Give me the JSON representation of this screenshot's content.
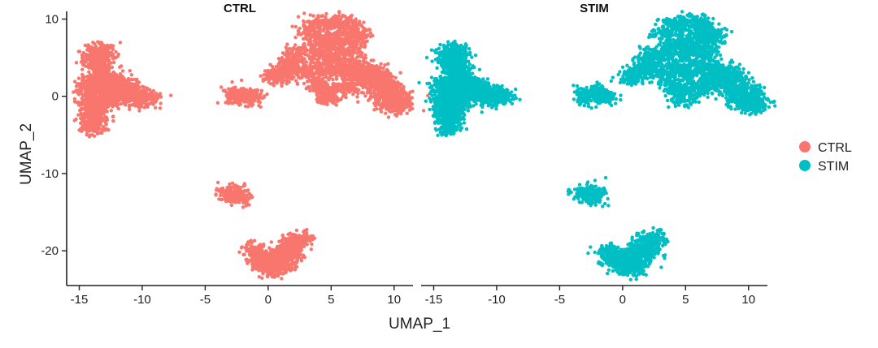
{
  "chart_data": {
    "type": "scatter",
    "xlabel": "UMAP_1",
    "ylabel": "UMAP_2",
    "xlim": [
      -16,
      11.5
    ],
    "ylim": [
      -24.5,
      11
    ],
    "x_ticks": [
      -15,
      -10,
      -5,
      0,
      5,
      10
    ],
    "x_tick_labels": [
      "-15",
      "-10",
      "-5",
      "0",
      "5",
      "10"
    ],
    "y_ticks": [
      10,
      0,
      -10,
      -20
    ],
    "y_tick_labels": [
      "10",
      "0",
      "-10",
      "-20"
    ],
    "grid": false,
    "legend": "right",
    "facets": [
      {
        "title": "CTRL",
        "color": "#F8766D",
        "clusters": [
          {
            "points": [
              [
                -13.6,
                5.5
              ],
              [
                -13.2,
                4.5
              ],
              [
                -13.5,
                3.6
              ],
              [
                -12.8,
                2.8
              ],
              [
                -13.9,
                4.8
              ],
              [
                -13.1,
                5.9
              ]
            ]
          },
          {
            "points": [
              [
                -14.2,
                1.8
              ],
              [
                -13.5,
                1.2
              ],
              [
                -12.6,
                1.0
              ],
              [
                -11.8,
                0.7
              ],
              [
                -11.0,
                0.6
              ],
              [
                -10.3,
                0.2
              ],
              [
                -9.6,
                -0.2
              ],
              [
                -13.8,
                0.2
              ],
              [
                -12.9,
                -0.4
              ],
              [
                -14.3,
                0.6
              ],
              [
                -12.2,
                -0.2
              ],
              [
                -11.4,
                1.4
              ],
              [
                -10.6,
                -0.4
              ],
              [
                -13.1,
                2.4
              ],
              [
                -12.3,
                1.9
              ]
            ]
          },
          {
            "points": [
              [
                -13.9,
                -0.8
              ],
              [
                -13.8,
                -1.6
              ],
              [
                -13.9,
                -2.5
              ],
              [
                -13.7,
                -3.2
              ],
              [
                -13.8,
                -4.1
              ],
              [
                -13.6,
                -1.2
              ],
              [
                -14.0,
                -2.0
              ]
            ]
          },
          {
            "points": [
              [
                -2.8,
                0.2
              ],
              [
                -2.3,
                0.1
              ],
              [
                -1.8,
                0.0
              ],
              [
                -1.4,
                -0.1
              ]
            ]
          },
          {
            "points": [
              [
                0.6,
                2.6
              ],
              [
                1.2,
                2.9
              ],
              [
                1.7,
                3.6
              ],
              [
                2.1,
                4.6
              ],
              [
                2.3,
                5.4
              ],
              [
                2.8,
                3.2
              ]
            ]
          },
          {
            "points": [
              [
                3.2,
                8.2
              ],
              [
                4.0,
                9.2
              ],
              [
                5.0,
                9.6
              ],
              [
                6.0,
                9.4
              ],
              [
                6.8,
                8.6
              ],
              [
                7.3,
                7.6
              ],
              [
                4.2,
                7.0
              ],
              [
                5.4,
                7.4
              ],
              [
                6.4,
                7.2
              ],
              [
                3.6,
                5.8
              ],
              [
                4.6,
                5.2
              ],
              [
                5.6,
                5.6
              ],
              [
                6.6,
                5.4
              ],
              [
                4.2,
                3.6
              ],
              [
                5.2,
                3.2
              ],
              [
                6.2,
                3.6
              ],
              [
                3.8,
                1.8
              ],
              [
                4.6,
                0.6
              ],
              [
                5.4,
                1.0
              ],
              [
                4.8,
                -0.3
              ]
            ]
          },
          {
            "points": [
              [
                6.8,
                3.6
              ],
              [
                7.6,
                3.0
              ],
              [
                8.4,
                2.6
              ],
              [
                9.2,
                2.2
              ],
              [
                9.6,
                1.0
              ],
              [
                9.0,
                0.2
              ],
              [
                8.4,
                1.4
              ],
              [
                7.2,
                2.0
              ],
              [
                10.2,
                0.2
              ],
              [
                10.6,
                -0.6
              ],
              [
                10.2,
                -1.4
              ],
              [
                9.4,
                -0.8
              ],
              [
                8.2,
                3.4
              ],
              [
                6.6,
                1.2
              ]
            ]
          },
          {
            "points": [
              [
                -3.0,
                -12.4
              ],
              [
                -2.6,
                -12.8
              ],
              [
                -2.4,
                -12.9
              ]
            ]
          },
          {
            "points": [
              [
                -1.2,
                -20.1
              ],
              [
                -0.4,
                -20.6
              ],
              [
                0.2,
                -21.0
              ],
              [
                0.8,
                -20.6
              ],
              [
                1.4,
                -19.8
              ],
              [
                2.0,
                -18.6
              ],
              [
                2.5,
                -18.4
              ],
              [
                0.0,
                -22.0
              ],
              [
                0.8,
                -22.4
              ],
              [
                1.4,
                -21.4
              ],
              [
                -0.6,
                -21.4
              ],
              [
                1.8,
                -20.4
              ]
            ]
          }
        ]
      },
      {
        "title": "STIM",
        "color": "#00BFC4",
        "clusters": [
          {
            "points": [
              [
                -13.6,
                5.5
              ],
              [
                -13.2,
                4.5
              ],
              [
                -13.5,
                3.6
              ],
              [
                -12.8,
                2.8
              ],
              [
                -13.9,
                4.8
              ],
              [
                -13.1,
                5.9
              ]
            ]
          },
          {
            "points": [
              [
                -14.2,
                1.8
              ],
              [
                -13.5,
                1.2
              ],
              [
                -12.6,
                1.0
              ],
              [
                -11.8,
                0.7
              ],
              [
                -11.0,
                0.6
              ],
              [
                -10.3,
                0.2
              ],
              [
                -9.6,
                -0.2
              ],
              [
                -13.8,
                0.2
              ],
              [
                -12.9,
                -0.4
              ],
              [
                -14.3,
                0.6
              ],
              [
                -12.2,
                -0.2
              ],
              [
                -11.4,
                1.4
              ],
              [
                -10.6,
                -0.4
              ],
              [
                -13.1,
                2.4
              ],
              [
                -12.3,
                1.9
              ]
            ]
          },
          {
            "points": [
              [
                -13.9,
                -0.8
              ],
              [
                -13.8,
                -1.6
              ],
              [
                -13.9,
                -2.5
              ],
              [
                -13.7,
                -3.2
              ],
              [
                -13.8,
                -4.1
              ],
              [
                -13.6,
                -1.2
              ],
              [
                -14.0,
                -2.0
              ]
            ]
          },
          {
            "points": [
              [
                -2.8,
                0.2
              ],
              [
                -2.3,
                0.1
              ],
              [
                -1.8,
                0.0
              ],
              [
                -1.4,
                -0.1
              ]
            ]
          },
          {
            "points": [
              [
                0.6,
                2.6
              ],
              [
                1.2,
                2.9
              ],
              [
                1.7,
                3.6
              ],
              [
                2.1,
                4.6
              ],
              [
                2.3,
                5.4
              ],
              [
                2.8,
                3.2
              ]
            ]
          },
          {
            "points": [
              [
                3.2,
                8.2
              ],
              [
                4.0,
                9.2
              ],
              [
                5.0,
                9.6
              ],
              [
                6.0,
                9.4
              ],
              [
                6.8,
                8.6
              ],
              [
                7.3,
                7.6
              ],
              [
                4.2,
                7.0
              ],
              [
                5.4,
                7.4
              ],
              [
                6.4,
                7.2
              ],
              [
                3.6,
                5.8
              ],
              [
                4.6,
                5.2
              ],
              [
                5.6,
                5.6
              ],
              [
                6.6,
                5.4
              ],
              [
                4.2,
                3.6
              ],
              [
                5.2,
                3.2
              ],
              [
                6.2,
                3.6
              ],
              [
                3.8,
                1.8
              ],
              [
                4.6,
                0.6
              ],
              [
                5.4,
                1.0
              ],
              [
                4.8,
                -0.3
              ]
            ]
          },
          {
            "points": [
              [
                6.8,
                3.6
              ],
              [
                7.6,
                3.0
              ],
              [
                8.4,
                2.6
              ],
              [
                9.2,
                2.2
              ],
              [
                9.6,
                1.0
              ],
              [
                9.0,
                0.2
              ],
              [
                8.4,
                1.4
              ],
              [
                7.2,
                2.0
              ],
              [
                10.2,
                0.2
              ],
              [
                10.6,
                -0.6
              ],
              [
                10.2,
                -1.4
              ],
              [
                9.4,
                -0.8
              ],
              [
                8.2,
                3.4
              ],
              [
                6.6,
                1.2
              ]
            ]
          },
          {
            "points": [
              [
                -3.0,
                -12.4
              ],
              [
                -2.6,
                -12.8
              ],
              [
                -2.4,
                -12.9
              ]
            ]
          },
          {
            "points": [
              [
                -1.2,
                -20.1
              ],
              [
                -0.4,
                -20.6
              ],
              [
                0.2,
                -21.0
              ],
              [
                0.8,
                -20.6
              ],
              [
                1.4,
                -19.8
              ],
              [
                2.0,
                -18.6
              ],
              [
                2.5,
                -18.4
              ],
              [
                0.0,
                -22.0
              ],
              [
                0.8,
                -22.4
              ],
              [
                1.4,
                -21.4
              ],
              [
                -0.6,
                -21.4
              ],
              [
                1.8,
                -20.4
              ]
            ]
          }
        ]
      }
    ],
    "legend_entries": [
      {
        "label": "CTRL",
        "color": "#F8766D"
      },
      {
        "label": "STIM",
        "color": "#00BFC4"
      }
    ]
  }
}
